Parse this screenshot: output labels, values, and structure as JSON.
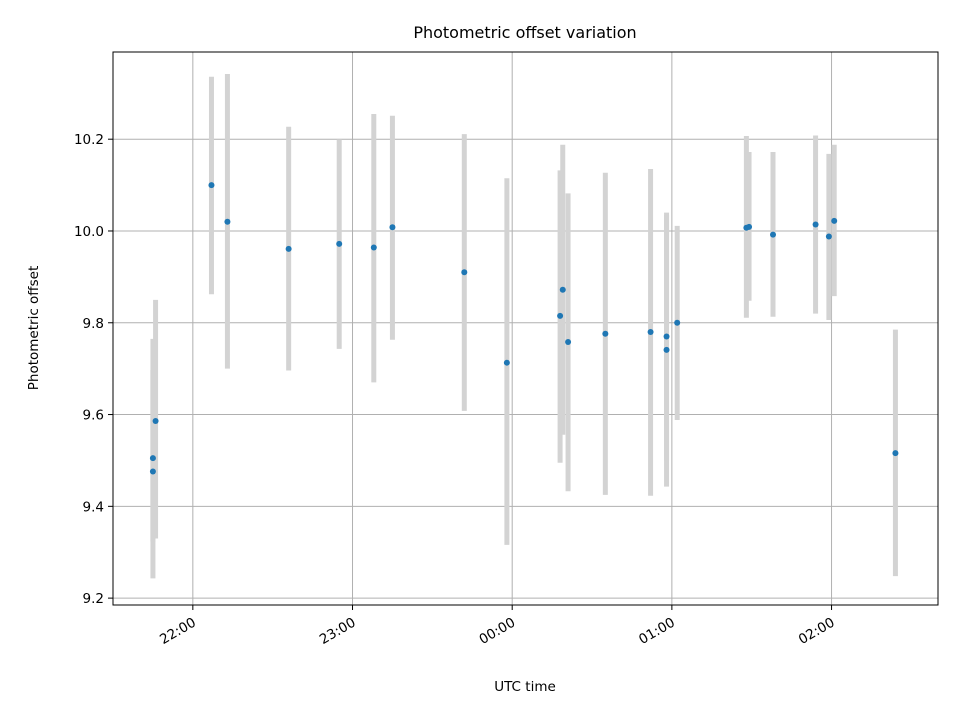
{
  "chart_data": {
    "type": "scatter",
    "title": "Photometric offset variation",
    "xlabel": "UTC time",
    "ylabel": "Photometric offset",
    "x_ticks": [
      "22:00",
      "23:00",
      "00:00",
      "01:00",
      "02:00"
    ],
    "y_ticks": [
      "9.2",
      "9.4",
      "9.6",
      "9.8",
      "10.0",
      "10.2"
    ],
    "x_range": [
      "21:30",
      "02:40"
    ],
    "ylim": [
      9.185,
      10.39
    ],
    "grid": true,
    "errorbar_color": "#d3d3d3",
    "marker_color": "#1f77b4",
    "series": [
      {
        "points": [
          {
            "x": "21:45",
            "y": 9.505,
            "lo": 9.243,
            "hi": 9.765
          },
          {
            "x": "21:45",
            "y": 9.476,
            "lo": 9.323,
            "hi": 9.697
          },
          {
            "x": "21:46",
            "y": 9.586,
            "lo": 9.33,
            "hi": 9.85
          },
          {
            "x": "22:07",
            "y": 10.1,
            "lo": 9.862,
            "hi": 10.336
          },
          {
            "x": "22:13",
            "y": 10.02,
            "lo": 9.7,
            "hi": 10.342
          },
          {
            "x": "22:36",
            "y": 9.961,
            "lo": 9.696,
            "hi": 10.227
          },
          {
            "x": "22:55",
            "y": 9.972,
            "lo": 9.743,
            "hi": 10.2
          },
          {
            "x": "23:08",
            "y": 9.964,
            "lo": 9.67,
            "hi": 10.255
          },
          {
            "x": "23:15",
            "y": 10.008,
            "lo": 9.763,
            "hi": 10.251
          },
          {
            "x": "23:42",
            "y": 9.91,
            "lo": 9.608,
            "hi": 10.211
          },
          {
            "x": "23:58",
            "y": 9.713,
            "lo": 9.316,
            "hi": 10.115
          },
          {
            "x": "00:18",
            "y": 9.815,
            "lo": 9.495,
            "hi": 10.132
          },
          {
            "x": "00:19",
            "y": 9.872,
            "lo": 9.556,
            "hi": 10.188
          },
          {
            "x": "00:21",
            "y": 9.758,
            "lo": 9.433,
            "hi": 10.082
          },
          {
            "x": "00:35",
            "y": 9.776,
            "lo": 9.425,
            "hi": 10.127
          },
          {
            "x": "00:52",
            "y": 9.78,
            "lo": 9.423,
            "hi": 10.135
          },
          {
            "x": "00:58",
            "y": 9.741,
            "lo": 9.443,
            "hi": 10.04
          },
          {
            "x": "00:58",
            "y": 9.77,
            "lo": 9.5,
            "hi": 10.035
          },
          {
            "x": "01:02",
            "y": 9.8,
            "lo": 9.588,
            "hi": 10.011
          },
          {
            "x": "01:28",
            "y": 10.007,
            "lo": 9.811,
            "hi": 10.207
          },
          {
            "x": "01:29",
            "y": 10.009,
            "lo": 9.848,
            "hi": 10.172
          },
          {
            "x": "01:38",
            "y": 9.992,
            "lo": 9.813,
            "hi": 10.172
          },
          {
            "x": "01:54",
            "y": 10.014,
            "lo": 9.82,
            "hi": 10.208
          },
          {
            "x": "01:59",
            "y": 9.988,
            "lo": 9.806,
            "hi": 10.168
          },
          {
            "x": "02:01",
            "y": 10.022,
            "lo": 9.858,
            "hi": 10.188
          },
          {
            "x": "02:24",
            "y": 9.516,
            "lo": 9.248,
            "hi": 9.785
          }
        ]
      }
    ]
  }
}
